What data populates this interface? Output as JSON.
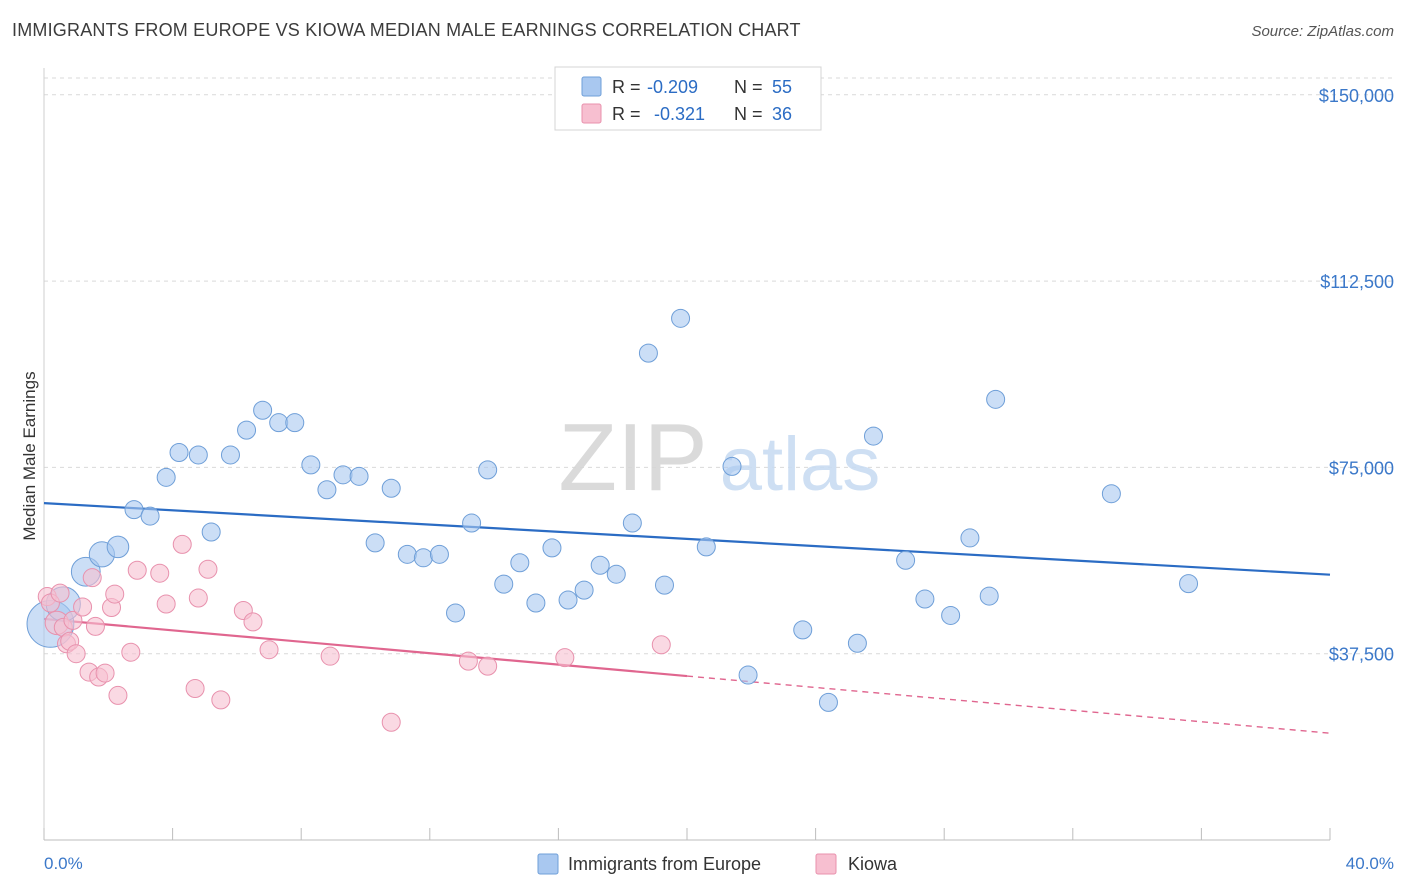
{
  "header": {
    "title": "IMMIGRANTS FROM EUROPE VS KIOWA MEDIAN MALE EARNINGS CORRELATION CHART",
    "source": "Source: ZipAtlas.com"
  },
  "watermark": {
    "zip": "ZIP",
    "atlas": "atlas"
  },
  "colors": {
    "blue_fill": "#a9c8f0",
    "blue_stroke": "#6f9fd8",
    "blue_line": "#2b6cc4",
    "pink_fill": "#f7bfd0",
    "pink_stroke": "#e891ad",
    "pink_line": "#e0668f",
    "tick_text": "#3b78c9",
    "grid": "#d9d9d9"
  },
  "stats_legend": {
    "rows": [
      {
        "r_label": "R =",
        "r_value": "-0.209",
        "n_label": "N =",
        "n_value": "55",
        "series": "blue"
      },
      {
        "r_label": "R =",
        "r_value": "-0.321",
        "n_label": "N =",
        "n_value": "36",
        "series": "pink"
      }
    ]
  },
  "chart_data": {
    "type": "scatter",
    "title": "IMMIGRANTS FROM EUROPE VS KIOWA MEDIAN MALE EARNINGS CORRELATION CHART",
    "xlabel": "",
    "ylabel": "Median Male Earnings",
    "xlim": [
      0,
      40
    ],
    "ylim": [
      0,
      157000
    ],
    "x_tick_labels": [
      "0.0%",
      "40.0%"
    ],
    "y_ticks": [
      37500,
      75000,
      112500,
      150000
    ],
    "y_tick_labels": [
      "$37,500",
      "$75,000",
      "$112,500",
      "$150,000"
    ],
    "grid": true,
    "legend_position": "bottom-center",
    "series": [
      {
        "name": "Immigrants from Europe",
        "color": "#a9c8f0",
        "r": -0.209,
        "n": 55,
        "trend": {
          "x": [
            0,
            40
          ],
          "y": [
            67800,
            53400
          ]
        },
        "points": [
          [
            0.2,
            43500
          ],
          [
            0.6,
            47500
          ],
          [
            1.3,
            54000
          ],
          [
            1.8,
            57500
          ],
          [
            2.3,
            59000
          ],
          [
            2.8,
            66500
          ],
          [
            3.3,
            65200
          ],
          [
            3.8,
            73000
          ],
          [
            4.2,
            78000
          ],
          [
            4.8,
            77500
          ],
          [
            5.2,
            62000
          ],
          [
            5.8,
            77500
          ],
          [
            6.3,
            82500
          ],
          [
            6.8,
            86500
          ],
          [
            7.3,
            84000
          ],
          [
            7.8,
            84000
          ],
          [
            8.3,
            75500
          ],
          [
            8.8,
            70500
          ],
          [
            9.3,
            73500
          ],
          [
            9.8,
            73200
          ],
          [
            10.3,
            59800
          ],
          [
            10.8,
            70800
          ],
          [
            11.3,
            57500
          ],
          [
            11.8,
            56800
          ],
          [
            12.3,
            57500
          ],
          [
            12.8,
            45700
          ],
          [
            13.3,
            63800
          ],
          [
            13.8,
            74500
          ],
          [
            14.3,
            51500
          ],
          [
            14.8,
            55800
          ],
          [
            15.3,
            47700
          ],
          [
            15.8,
            58800
          ],
          [
            16.3,
            48300
          ],
          [
            16.8,
            50300
          ],
          [
            17.3,
            55300
          ],
          [
            17.8,
            53500
          ],
          [
            18.3,
            63800
          ],
          [
            18.8,
            98000
          ],
          [
            19.3,
            51300
          ],
          [
            19.8,
            105000
          ],
          [
            20.6,
            59000
          ],
          [
            21.4,
            75200
          ],
          [
            21.9,
            33200
          ],
          [
            23.6,
            42300
          ],
          [
            24.4,
            27700
          ],
          [
            25.3,
            39600
          ],
          [
            25.8,
            81300
          ],
          [
            26.8,
            56300
          ],
          [
            27.4,
            48500
          ],
          [
            28.2,
            45200
          ],
          [
            28.8,
            60800
          ],
          [
            29.4,
            49100
          ],
          [
            29.6,
            88700
          ],
          [
            33.2,
            69700
          ],
          [
            35.6,
            51600
          ]
        ],
        "sizes": [
          2.6,
          1.9,
          1.6,
          1.4,
          1.2,
          1,
          1,
          1,
          1,
          1,
          1,
          1,
          1,
          1,
          1,
          1,
          1,
          1,
          1,
          1,
          1,
          1,
          1,
          1,
          1,
          1,
          1,
          1,
          1,
          1,
          1,
          1,
          1,
          1,
          1,
          1,
          1,
          1,
          1,
          1,
          1,
          1,
          1,
          1,
          1,
          1,
          1,
          1,
          1,
          1,
          1,
          1,
          1,
          1,
          1
        ]
      },
      {
        "name": "Kiowa",
        "color": "#f7bfd0",
        "r": -0.321,
        "n": 36,
        "trend": {
          "x": [
            0,
            20
          ],
          "y": [
            44500,
            33000
          ]
        },
        "trend_dashed": {
          "x": [
            20,
            40
          ],
          "y": [
            33000,
            21500
          ]
        },
        "points": [
          [
            0.1,
            49000
          ],
          [
            0.2,
            47700
          ],
          [
            0.4,
            43700
          ],
          [
            0.5,
            49700
          ],
          [
            0.6,
            42800
          ],
          [
            0.7,
            39500
          ],
          [
            0.8,
            40000
          ],
          [
            0.9,
            44200
          ],
          [
            1.0,
            37500
          ],
          [
            1.2,
            46900
          ],
          [
            1.4,
            33800
          ],
          [
            1.5,
            52800
          ],
          [
            1.6,
            43000
          ],
          [
            1.7,
            32800
          ],
          [
            1.9,
            33600
          ],
          [
            2.1,
            46800
          ],
          [
            2.2,
            49500
          ],
          [
            2.3,
            29100
          ],
          [
            2.7,
            37800
          ],
          [
            2.9,
            54300
          ],
          [
            3.6,
            53700
          ],
          [
            3.8,
            47500
          ],
          [
            4.3,
            59500
          ],
          [
            4.7,
            30500
          ],
          [
            4.8,
            48700
          ],
          [
            5.1,
            54500
          ],
          [
            5.5,
            28200
          ],
          [
            6.2,
            46200
          ],
          [
            6.5,
            43900
          ],
          [
            7.0,
            38300
          ],
          [
            8.9,
            37000
          ],
          [
            10.8,
            23700
          ],
          [
            13.2,
            36000
          ],
          [
            13.8,
            35000
          ],
          [
            16.2,
            36700
          ],
          [
            19.2,
            39300
          ]
        ],
        "sizes": [
          1,
          1,
          1.3,
          1,
          1,
          1,
          1,
          1,
          1,
          1,
          1,
          1,
          1,
          1,
          1,
          1,
          1,
          1,
          1,
          1,
          1,
          1,
          1,
          1,
          1,
          1,
          1,
          1,
          1,
          1,
          1,
          1,
          1,
          1,
          1,
          1
        ]
      }
    ]
  },
  "bottom_legend": {
    "items": [
      {
        "label": "Immigrants from Europe",
        "series": "blue"
      },
      {
        "label": "Kiowa",
        "series": "pink"
      }
    ]
  }
}
